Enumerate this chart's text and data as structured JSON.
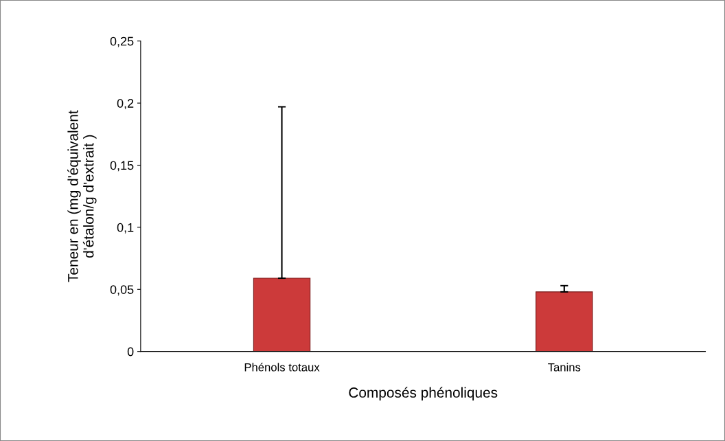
{
  "chart_data": {
    "type": "bar",
    "xlabel": "Composés phénoliques",
    "ylabel": "Teneur en (mg d'équivalent\nd'étalon/g d'extrait )",
    "categories": [
      "Phénols totaux",
      "Tanins"
    ],
    "values": [
      0.059,
      0.048
    ],
    "errors": [
      [
        0.059,
        0.197
      ],
      [
        0.048,
        0.053
      ]
    ],
    "color": "#cc3a3a",
    "ylim": [
      0,
      0.25
    ],
    "yticks": [
      0,
      {
        "value": 0.05,
        "label": "0,05"
      },
      {
        "value": 0.1,
        "label": "0,1"
      },
      {
        "value": 0.15,
        "label": "0,15"
      },
      {
        "value": 0.2,
        "label": "0,2"
      },
      {
        "value": 0.25,
        "label": "0,25"
      }
    ],
    "grid": false,
    "legend": false
  }
}
